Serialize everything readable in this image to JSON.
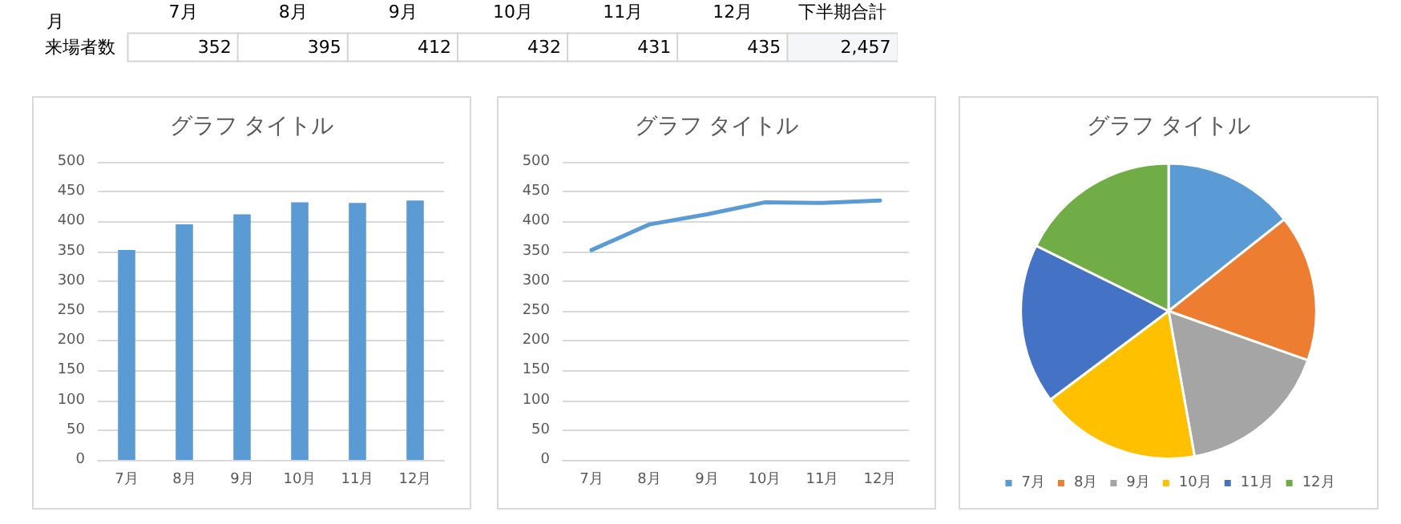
{
  "chart_data": [
    {
      "type": "heatmap",
      "xlabel": "月",
      "categories": [
        "7月",
        "8月",
        "9月",
        "10月",
        "11月",
        "12月",
        "下半期合計"
      ],
      "y_categories": [
        "来場者数"
      ],
      "cells": [
        [
          352,
          395,
          412,
          432,
          431,
          435,
          2457
        ]
      ],
      "cell_labels": [
        [
          "352",
          "395",
          "412",
          "432",
          "431",
          "435",
          "2,457"
        ]
      ],
      "color": "#ffffff"
    },
    {
      "type": "bar",
      "title": "グラフ タイトル",
      "categories": [
        "7月",
        "8月",
        "9月",
        "10月",
        "11月",
        "12月"
      ],
      "values": [
        352,
        395,
        412,
        432,
        431,
        435
      ],
      "color": "#5b9bd5",
      "ylim": [
        0,
        500
      ],
      "yticks": [
        0,
        50,
        100,
        150,
        200,
        250,
        300,
        350,
        400,
        450,
        500
      ],
      "grid": "y",
      "legend": false
    },
    {
      "type": "line",
      "title": "グラフ タイトル",
      "categories": [
        "7月",
        "8月",
        "9月",
        "10月",
        "11月",
        "12月"
      ],
      "values": [
        352,
        395,
        412,
        432,
        431,
        435
      ],
      "color": "#5b9bd5",
      "ylim": [
        0,
        500
      ],
      "yticks": [
        0,
        50,
        100,
        150,
        200,
        250,
        300,
        350,
        400,
        450,
        500
      ],
      "grid": "y",
      "marker": "none",
      "line_style": "solid",
      "legend": false
    },
    {
      "type": "pie",
      "title": "グラフ タイトル",
      "categories": [
        "7月",
        "8月",
        "9月",
        "10月",
        "11月",
        "12月"
      ],
      "values": [
        14.33,
        16.08,
        16.77,
        17.58,
        17.54,
        17.7
      ],
      "colors": [
        "#5b9bd5",
        "#ed7d31",
        "#a5a5a5",
        "#ffc000",
        "#4472c4",
        "#70ad47"
      ],
      "legend": "bottom"
    }
  ]
}
